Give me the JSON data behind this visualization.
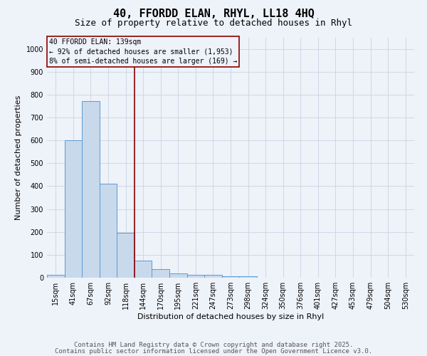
{
  "title1": "40, FFORDD ELAN, RHYL, LL18 4HQ",
  "title2": "Size of property relative to detached houses in Rhyl",
  "xlabel": "Distribution of detached houses by size in Rhyl",
  "ylabel": "Number of detached properties",
  "categories": [
    "15sqm",
    "41sqm",
    "67sqm",
    "92sqm",
    "118sqm",
    "144sqm",
    "170sqm",
    "195sqm",
    "221sqm",
    "247sqm",
    "273sqm",
    "298sqm",
    "324sqm",
    "350sqm",
    "376sqm",
    "401sqm",
    "427sqm",
    "453sqm",
    "479sqm",
    "504sqm",
    "530sqm"
  ],
  "values": [
    13,
    600,
    770,
    410,
    195,
    75,
    38,
    18,
    12,
    11,
    5,
    5,
    0,
    0,
    0,
    0,
    0,
    0,
    0,
    0,
    0
  ],
  "bar_color": "#c8d9ec",
  "bar_edge_color": "#5b9bd5",
  "vline_x": 4.5,
  "vline_color": "#8b0000",
  "annotation_text": "40 FFORDD ELAN: 139sqm\n← 92% of detached houses are smaller (1,953)\n8% of semi-detached houses are larger (169) →",
  "annotation_box_color": "#8b0000",
  "ylim": [
    0,
    1050
  ],
  "yticks": [
    0,
    100,
    200,
    300,
    400,
    500,
    600,
    700,
    800,
    900,
    1000
  ],
  "grid_color": "#c8d4e3",
  "footer1": "Contains HM Land Registry data © Crown copyright and database right 2025.",
  "footer2": "Contains public sector information licensed under the Open Government Licence v3.0.",
  "bg_color": "#eef2f9",
  "title_fontsize": 11,
  "subtitle_fontsize": 9,
  "axis_label_fontsize": 8,
  "tick_fontsize": 7,
  "annotation_fontsize": 7,
  "footer_fontsize": 6.5
}
